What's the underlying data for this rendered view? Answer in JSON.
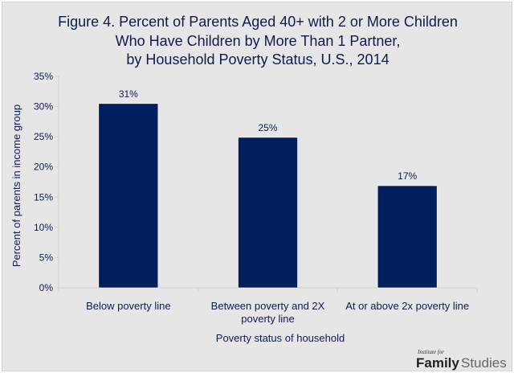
{
  "chart_data": {
    "type": "bar",
    "title": [
      "Figure 4. Percent of Parents Aged 40+ with 2 or More Children",
      "Who Have Children by More Than 1 Partner,",
      "by Household Poverty Status, U.S., 2014"
    ],
    "categories": [
      [
        "Below poverty line"
      ],
      [
        "Between poverty and 2X",
        "poverty line"
      ],
      [
        "At or above 2x poverty line"
      ]
    ],
    "values": [
      30.5,
      24.9,
      16.9
    ],
    "data_labels": [
      "31%",
      "25%",
      "17%"
    ],
    "xlabel": "Poverty status of household",
    "ylabel": "Percent of parents in income group",
    "ylim": [
      0,
      35
    ],
    "yticks": [
      0,
      5,
      10,
      15,
      20,
      25,
      30,
      35
    ],
    "ytick_labels": [
      "0%",
      "5%",
      "10%",
      "15%",
      "20%",
      "25%",
      "30%",
      "35%"
    ],
    "grid": false,
    "legend": "none",
    "bar_color": "#001f5c"
  },
  "branding": {
    "small": "Institute for",
    "bold": "Family",
    "light": "Studies"
  }
}
